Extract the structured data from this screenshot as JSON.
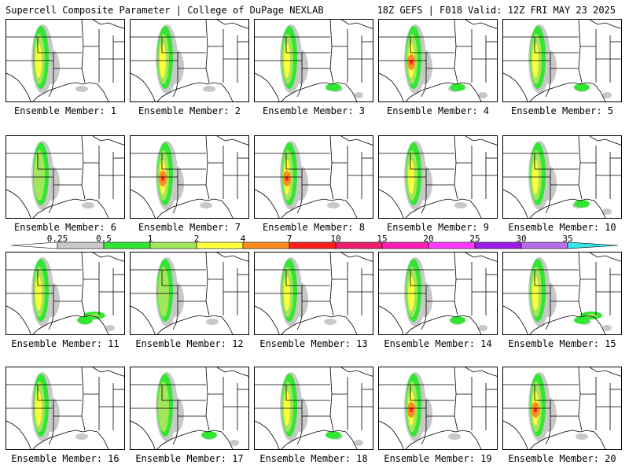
{
  "header": {
    "title_left": "Supercell Composite Parameter | College of DuPage NEXLAB",
    "title_right": "18Z GEFS | F018 Valid: 12Z FRI MAY 23 2025"
  },
  "colorbar": {
    "levels": [
      {
        "label": "0.25",
        "color": "#c8c8c8"
      },
      {
        "label": "0.5",
        "color": "#34e634"
      },
      {
        "label": "1",
        "color": "#a2e65a"
      },
      {
        "label": "2",
        "color": "#ffff3c"
      },
      {
        "label": "4",
        "color": "#ff8c1e"
      },
      {
        "label": "7",
        "color": "#ff1e1e"
      },
      {
        "label": "10",
        "color": "#ee1e6e"
      },
      {
        "label": "15",
        "color": "#ff1eb4"
      },
      {
        "label": "20",
        "color": "#ff3cff"
      },
      {
        "label": "25",
        "color": "#9b1ee6"
      },
      {
        "label": "30",
        "color": "#b46ee6"
      },
      {
        "label": "35",
        "color": "#37e6e6"
      }
    ],
    "end_color": "#37e6e6"
  },
  "panel_label_prefix": "Ensemble Member: ",
  "members": [
    {
      "label": "Ensemble Member: 1",
      "intensity": 3,
      "gulf": 1
    },
    {
      "label": "Ensemble Member: 2",
      "intensity": 3,
      "gulf": 1
    },
    {
      "label": "Ensemble Member: 3",
      "intensity": 3,
      "gulf": 2
    },
    {
      "label": "Ensemble Member: 4",
      "intensity": 4,
      "gulf": 2
    },
    {
      "label": "Ensemble Member: 5",
      "intensity": 3,
      "gulf": 2
    },
    {
      "label": "Ensemble Member: 6",
      "intensity": 2,
      "gulf": 1
    },
    {
      "label": "Ensemble Member: 7",
      "intensity": 4,
      "gulf": 1
    },
    {
      "label": "Ensemble Member: 8",
      "intensity": 4,
      "gulf": 1
    },
    {
      "label": "Ensemble Member: 9",
      "intensity": 3,
      "gulf": 1
    },
    {
      "label": "Ensemble Member: 10",
      "intensity": 3,
      "gulf": 2
    },
    {
      "label": "Ensemble Member: 11",
      "intensity": 3,
      "gulf": 3
    },
    {
      "label": "Ensemble Member: 12",
      "intensity": 2,
      "gulf": 1
    },
    {
      "label": "Ensemble Member: 13",
      "intensity": 3,
      "gulf": 1
    },
    {
      "label": "Ensemble Member: 14",
      "intensity": 3,
      "gulf": 2
    },
    {
      "label": "Ensemble Member: 15",
      "intensity": 3,
      "gulf": 3
    },
    {
      "label": "Ensemble Member: 16",
      "intensity": 3,
      "gulf": 1
    },
    {
      "label": "Ensemble Member: 17",
      "intensity": 2,
      "gulf": 2
    },
    {
      "label": "Ensemble Member: 18",
      "intensity": 3,
      "gulf": 2
    },
    {
      "label": "Ensemble Member: 19",
      "intensity": 4,
      "gulf": 1
    },
    {
      "label": "Ensemble Member: 20",
      "intensity": 4,
      "gulf": 1
    }
  ]
}
